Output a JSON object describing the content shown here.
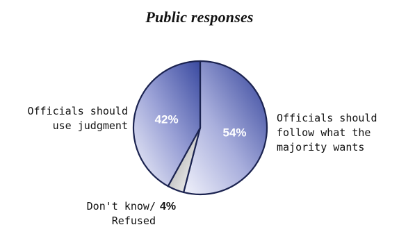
{
  "chart_data": {
    "type": "pie",
    "title": "Public responses",
    "slices": [
      {
        "label": "Officials should follow what the majority wants",
        "value": 54,
        "value_label": "54%",
        "color": "#3f4fa3",
        "label_position": "right"
      },
      {
        "label": "Don't know/ Refused",
        "value": 4,
        "value_label": "4%",
        "color": "#c8c8c8",
        "label_position": "bottom"
      },
      {
        "label": "Officials should use judgment",
        "value": 42,
        "value_label": "42%",
        "color": "#5a66ad",
        "label_position": "left"
      }
    ]
  },
  "labels": {
    "right_text": "Officials should\nfollow what the\nmajority wants",
    "left_text": "Officials should\nuse judgment",
    "bottom_text": "Don't know/\nRefused",
    "bottom_pct": "4%"
  }
}
